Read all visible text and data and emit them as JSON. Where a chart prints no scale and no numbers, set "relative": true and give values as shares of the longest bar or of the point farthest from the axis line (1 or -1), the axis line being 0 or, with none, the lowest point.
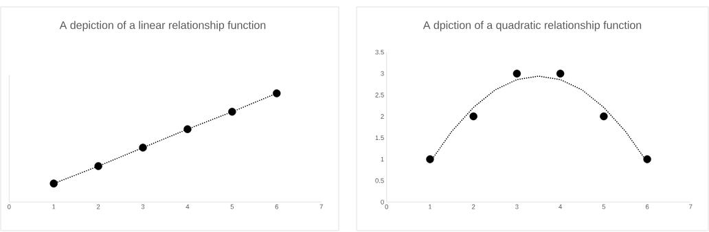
{
  "chart_data": [
    {
      "type": "line",
      "title": "A depiction of a linear relationship function",
      "x": [
        1,
        2,
        3,
        4,
        5,
        6
      ],
      "values": [
        0.17,
        0.33,
        0.5,
        0.67,
        0.83,
        1
      ],
      "relative": true,
      "color": "#000000",
      "marker": "circle",
      "line_style": "dotted",
      "xlim": [
        0,
        7
      ],
      "xticks": [
        0,
        1,
        2,
        3,
        4,
        5,
        6,
        7
      ],
      "grid": false
    },
    {
      "type": "scatter",
      "title": "A dpiction of a quadratic relationship function",
      "xlim": [
        0,
        7
      ],
      "xticks": [
        0,
        1,
        2,
        3,
        4,
        5,
        6,
        7
      ],
      "ylim": [
        0,
        3.5
      ],
      "yticks": [
        0,
        0.5,
        1,
        1.5,
        2,
        2.5,
        3,
        3.5
      ],
      "grid": false,
      "series": [
        {
          "type": "scatter",
          "color": "#000000",
          "marker": "circle",
          "x": [
            1,
            2,
            3,
            4,
            5,
            6
          ],
          "values": [
            1,
            2,
            3,
            3,
            2,
            1
          ]
        },
        {
          "type": "line",
          "color": "#000000",
          "marker": "none",
          "line_style": "dotted",
          "x": [
            1,
            1.5,
            2,
            2.5,
            3,
            3.5,
            4,
            4.5,
            5,
            5.5,
            6
          ],
          "values": [
            0.93,
            1.65,
            2.21,
            2.62,
            2.86,
            2.94,
            2.86,
            2.62,
            2.21,
            1.65,
            0.93
          ]
        }
      ]
    }
  ]
}
